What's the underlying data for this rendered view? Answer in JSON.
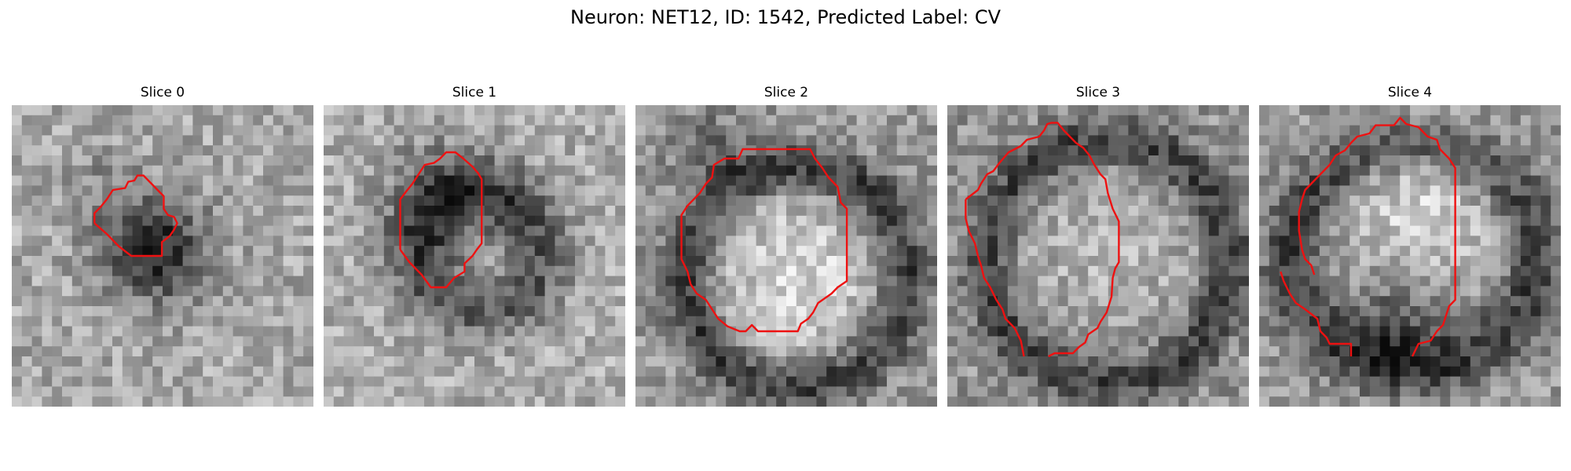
{
  "figure": {
    "title": "Neuron: NET12, ID: 1542, Predicted Label: CV"
  },
  "panels": [
    {
      "label": "Slice 0"
    },
    {
      "label": "Slice 1"
    },
    {
      "label": "Slice 2"
    },
    {
      "label": "Slice 3"
    },
    {
      "label": "Slice 4"
    }
  ],
  "colors": {
    "contour": "#ee1111",
    "background": "#ffffff"
  }
}
